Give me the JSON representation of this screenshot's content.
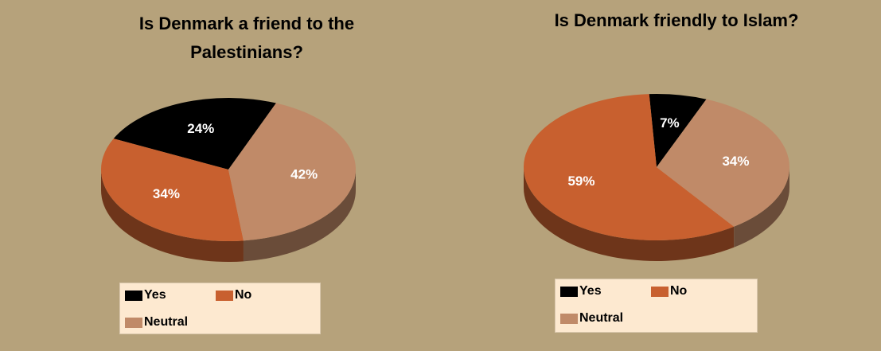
{
  "chart_data": [
    {
      "type": "pie",
      "title": "Is Denmark a friend to the Palestinians?",
      "categories": [
        "Yes",
        "No",
        "Neutral"
      ],
      "values": [
        24,
        34,
        42
      ],
      "value_labels": [
        "24%",
        "34%",
        "42%"
      ],
      "colors": [
        "#000000",
        "#c8602f",
        "#c08a68"
      ],
      "legend": "bottom"
    },
    {
      "type": "pie",
      "title": "Is Denmark friendly to Islam?",
      "categories": [
        "Yes",
        "No",
        "Neutral"
      ],
      "values": [
        7,
        59,
        34
      ],
      "value_labels": [
        "7%",
        "59%",
        "34%"
      ],
      "colors": [
        "#000000",
        "#c8602f",
        "#c08a68"
      ],
      "legend": "bottom"
    }
  ]
}
